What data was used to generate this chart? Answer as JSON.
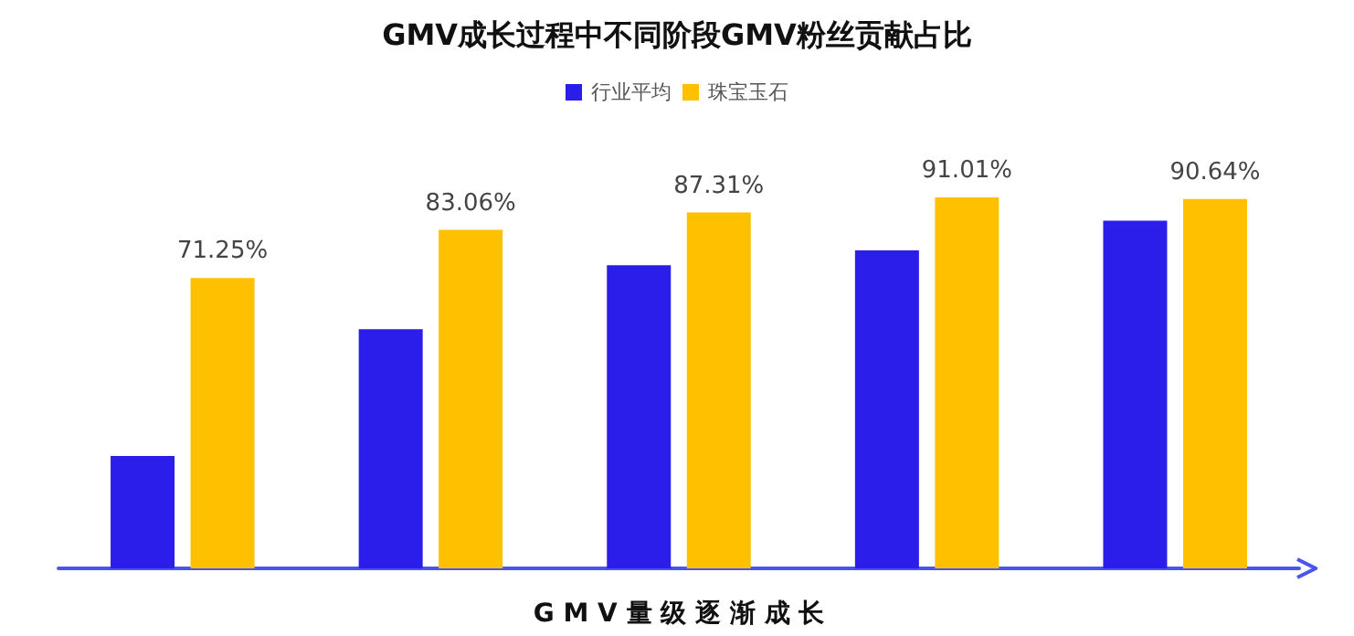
{
  "chart_data": {
    "type": "bar",
    "title": "GMV成长过程中不同阶段GMV粉丝贡献占比",
    "xlabel": "G M V 量 级 逐 渐 成 长",
    "categories": [
      null,
      null,
      null,
      null,
      null
    ],
    "series": [
      {
        "name": "行业平均",
        "color": "#2b1eea",
        "values": [
          27.6,
          58.7,
          74.4,
          78.0,
          85.3
        ]
      },
      {
        "name": "珠宝玉石",
        "color": "#ffc000",
        "values": [
          71.25,
          83.06,
          87.31,
          91.01,
          90.64
        ],
        "value_labels": [
          "71.25%",
          "83.06%",
          "87.31%",
          "91.01%",
          "90.64%"
        ]
      }
    ],
    "tick_labels": false,
    "grid": false,
    "legend": "top"
  }
}
